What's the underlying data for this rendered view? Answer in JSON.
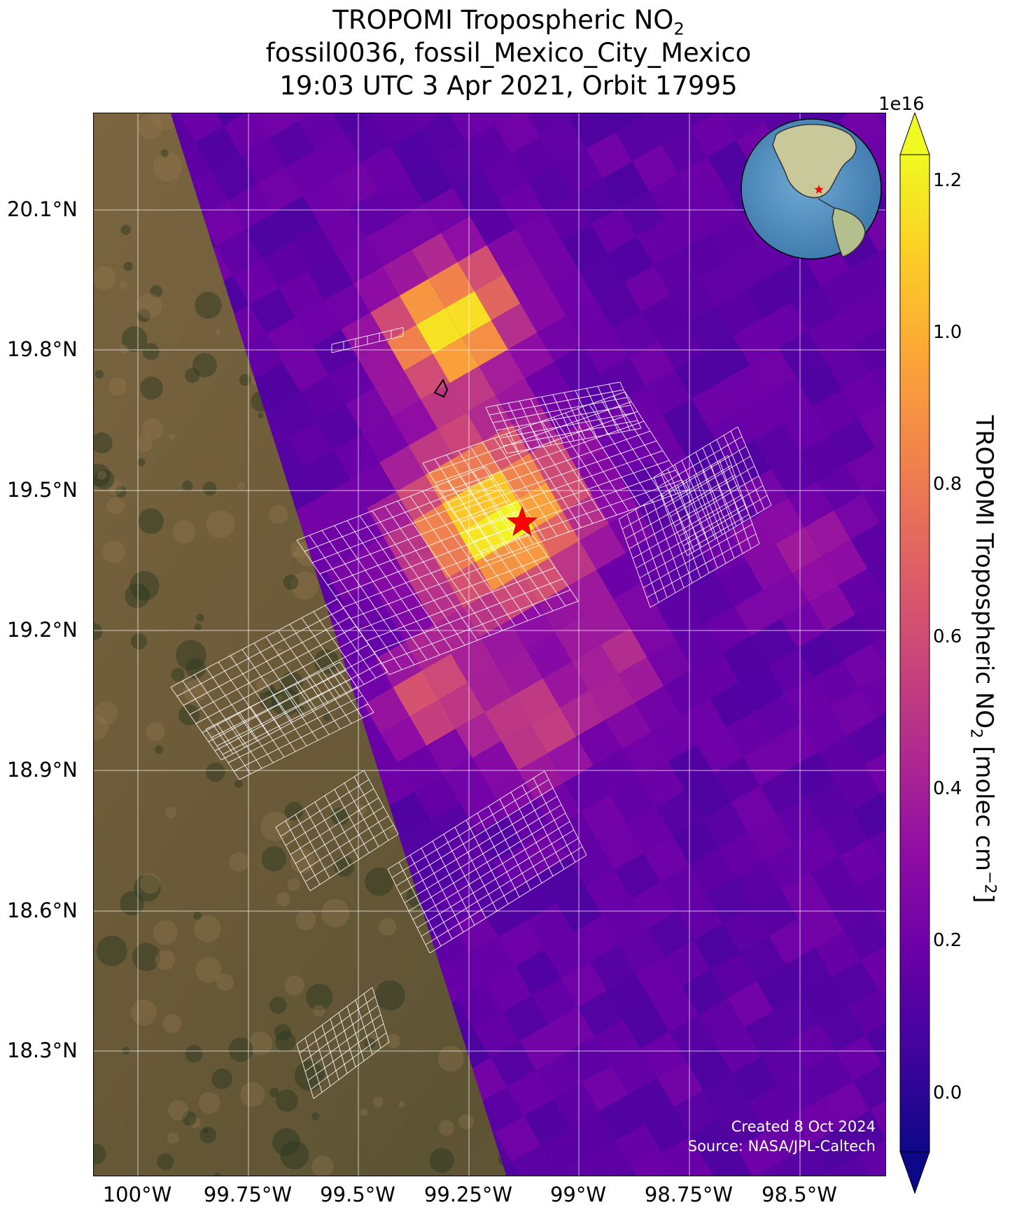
{
  "title": {
    "line1_prefix": "TROPOMI Tropospheric NO",
    "line1_sub": "2",
    "line2": "fossil0036, fossil_Mexico_City_Mexico",
    "line3": "19:03 UTC 3 Apr 2021, Orbit 17995"
  },
  "map": {
    "lat_labels": [
      "20.1°N",
      "19.8°N",
      "19.5°N",
      "19.2°N",
      "18.9°N",
      "18.6°N",
      "18.3°N"
    ],
    "lon_labels": [
      "100°W",
      "99.75°W",
      "99.5°W",
      "99.25°W",
      "99°W",
      "98.75°W",
      "98.5°W"
    ],
    "lon_range": [
      -100.1,
      -98.3
    ],
    "lat_range": [
      18.0,
      20.3
    ],
    "target_marker": {
      "lon": -99.13,
      "lat": 19.43,
      "color": "#ff0000",
      "symbol": "star"
    },
    "inset": {
      "content": "globe-orthographic-americas",
      "marker_color": "#ff0000"
    },
    "credit_line1": "Created 8 Oct 2024",
    "credit_line2": "Source: NASA/JPL-Caltech",
    "background_left": "satellite-terrain",
    "swath_overlay": "TROPOMI NO2 pixels",
    "target_grid_overlay": "white outlined sounding grid"
  },
  "colorbar": {
    "colormap": "plasma",
    "exponent": "1e16",
    "label_prefix": "TROPOMI Tropospheric NO",
    "label_sub": "2",
    "label_suffix": " [molec cm",
    "label_sup": "−2",
    "label_end": "]",
    "ticks": [
      "1.2",
      "1.0",
      "0.8",
      "0.6",
      "0.4",
      "0.2",
      "0.0"
    ],
    "range": [
      -0.05,
      1.25
    ],
    "extend": "both"
  },
  "colors": {
    "low": "#0d0887",
    "mid": "#cc4778",
    "high": "#f0f921"
  }
}
